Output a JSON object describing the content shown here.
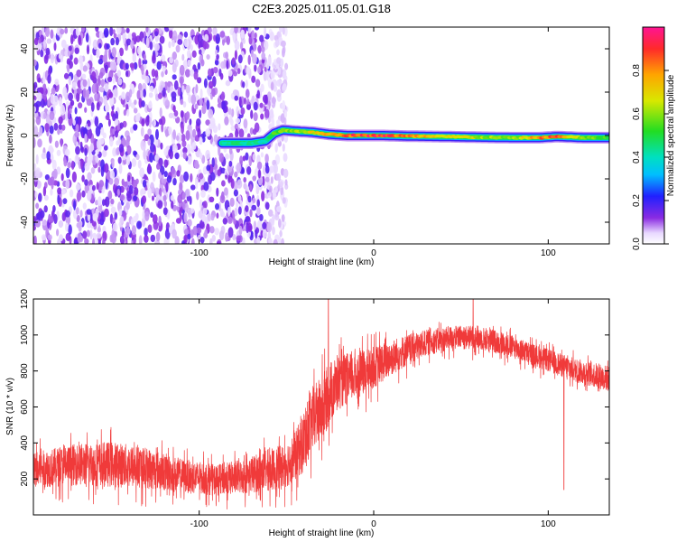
{
  "title": "C2E3.2025.011.05.01.G18",
  "colors": {
    "snr_line": "#f03a3a",
    "axis": "#000000"
  },
  "chart_data": [
    {
      "type": "heatmap",
      "xlabel": "Height of straight line (km)",
      "ylabel": "Frequency (Hz)",
      "xlim": [
        -195,
        135
      ],
      "ylim": [
        -50,
        50
      ],
      "x_ticks": [
        {
          "value": -100,
          "label": "-100"
        },
        {
          "value": 0,
          "label": "0"
        },
        {
          "value": 100,
          "label": "100"
        }
      ],
      "y_ticks": [
        {
          "value": -40,
          "label": "-40"
        },
        {
          "value": -20,
          "label": "-20"
        },
        {
          "value": 0,
          "label": "0"
        },
        {
          "value": 20,
          "label": "20"
        },
        {
          "value": 40,
          "label": "40"
        }
      ],
      "colorbar": {
        "label": "Normalized spectral amplitude",
        "range": [
          0,
          1
        ],
        "ticks": [
          "0.0",
          "0.2",
          "0.4",
          "0.6",
          "0.8"
        ],
        "tick_values": [
          0,
          0.2,
          0.4,
          0.6,
          0.8
        ]
      },
      "noise_region": {
        "x_start": -195,
        "x_end": -50,
        "dense_until": -60
      },
      "signal_ridge": {
        "x": [
          -87,
          -80,
          -70,
          -62,
          -57,
          -52,
          -45,
          -35,
          -25,
          -15,
          -5,
          5,
          20,
          40,
          60,
          80,
          95,
          105,
          120,
          135
        ],
        "y": [
          -3.5,
          -3.5,
          -3.5,
          -2.5,
          1,
          2.5,
          2,
          1.5,
          0.5,
          0,
          0,
          0,
          -0.3,
          -0.5,
          -0.8,
          -1,
          -1,
          -0.5,
          -1,
          -1
        ],
        "amplitude": [
          0.45,
          0.45,
          0.45,
          0.4,
          0.55,
          0.6,
          0.65,
          0.7,
          0.85,
          0.9,
          0.95,
          0.95,
          0.85,
          0.75,
          0.65,
          0.6,
          0.85,
          0.9,
          0.6,
          0.55
        ]
      }
    },
    {
      "type": "line",
      "xlabel": "Height of straight line (km)",
      "ylabel": "SNR (10 * v/v)",
      "xlim": [
        -195,
        135
      ],
      "ylim": [
        0,
        1200
      ],
      "x_ticks": [
        {
          "value": -100,
          "label": "-100"
        },
        {
          "value": 0,
          "label": "0"
        },
        {
          "value": 100,
          "label": "100"
        }
      ],
      "y_ticks": [
        {
          "value": 200,
          "label": "200"
        },
        {
          "value": 400,
          "label": "400"
        },
        {
          "value": 600,
          "label": "600"
        },
        {
          "value": 800,
          "label": "800"
        },
        {
          "value": 1000,
          "label": "1000"
        },
        {
          "value": 1200,
          "label": "1200"
        }
      ],
      "envelope": {
        "x": [
          -195,
          -170,
          -150,
          -130,
          -110,
          -90,
          -75,
          -62,
          -52,
          -45,
          -40,
          -35,
          -30,
          -25,
          -20,
          -10,
          0,
          15,
          30,
          45,
          60,
          75,
          90,
          105,
          115,
          125,
          135
        ],
        "low": [
          60,
          60,
          40,
          40,
          40,
          30,
          30,
          30,
          30,
          60,
          100,
          180,
          250,
          350,
          450,
          520,
          600,
          720,
          820,
          860,
          860,
          830,
          780,
          720,
          680,
          650,
          620
        ],
        "high": [
          420,
          480,
          500,
          460,
          380,
          340,
          380,
          440,
          480,
          560,
          700,
          850,
          900,
          980,
          1000,
          1000,
          1020,
          1060,
          1080,
          1100,
          1100,
          1060,
          1000,
          950,
          920,
          900,
          880
        ]
      },
      "spikes": [
        {
          "x": -26,
          "y": 1200
        },
        {
          "x": 57,
          "y": 1200
        },
        {
          "x": 109,
          "y": 140
        }
      ]
    }
  ]
}
